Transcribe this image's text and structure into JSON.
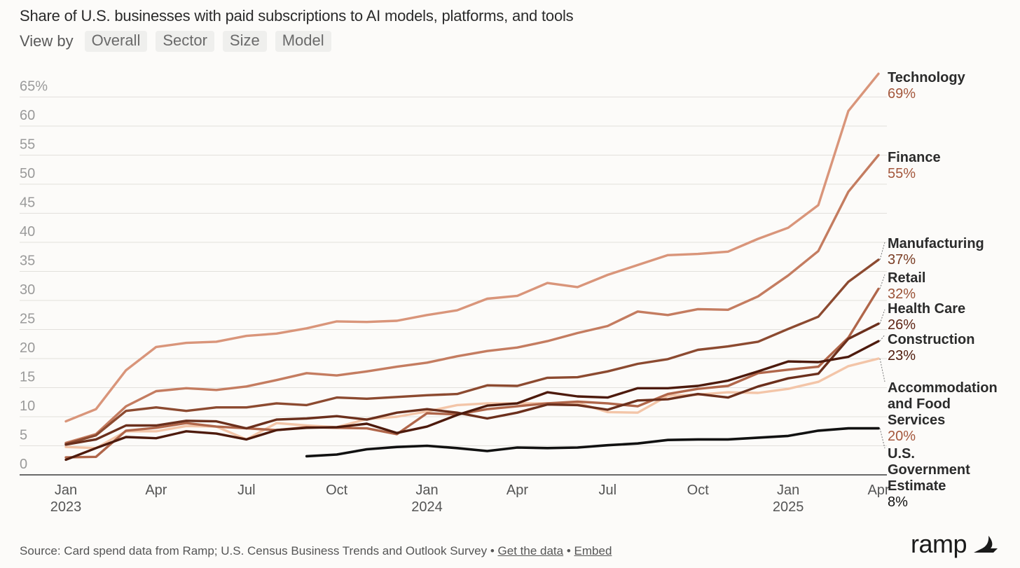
{
  "header": {
    "title": "Share of U.S. businesses with paid subscriptions to AI models, platforms, and tools",
    "view_by_label": "View by",
    "view_options": [
      "Overall",
      "Sector",
      "Size",
      "Model"
    ]
  },
  "footer": {
    "source_text": "Source: Card spend data from Ramp; U.S. Census Business Trends and Outlook Survey",
    "separator": "•",
    "get_data_link": "Get the data",
    "embed_link": "Embed"
  },
  "brand": {
    "name": "ramp",
    "logo_icon": "ramp-logo-icon"
  },
  "colors": {
    "background": "#fcfbf9",
    "grid": "#e2e0dc",
    "axis": "#3a3a3a",
    "tick_text": "#9a9a9a",
    "label_text": "#2b2b2b"
  },
  "chart_data": {
    "type": "line",
    "title": "Share of U.S. businesses with paid subscriptions to AI models, platforms, and tools",
    "xlabel": "",
    "ylabel": "",
    "ylim": [
      0,
      67
    ],
    "grid": true,
    "legend": "direct labels at right end of lines",
    "y_ticks": [
      0,
      5,
      10,
      15,
      20,
      25,
      30,
      35,
      40,
      45,
      50,
      55,
      60,
      65
    ],
    "y_tick_labels": [
      "0",
      "5",
      "10",
      "15",
      "20",
      "25",
      "30",
      "35",
      "40",
      "45",
      "50",
      "55",
      "60",
      "65%"
    ],
    "x_ticks": [
      {
        "month": "2023-01",
        "label": "Jan",
        "year": "2023"
      },
      {
        "month": "2023-04",
        "label": "Apr",
        "year": ""
      },
      {
        "month": "2023-07",
        "label": "Jul",
        "year": ""
      },
      {
        "month": "2023-10",
        "label": "Oct",
        "year": ""
      },
      {
        "month": "2024-01",
        "label": "Jan",
        "year": "2024"
      },
      {
        "month": "2024-04",
        "label": "Apr",
        "year": ""
      },
      {
        "month": "2024-07",
        "label": "Jul",
        "year": ""
      },
      {
        "month": "2024-10",
        "label": "Oct",
        "year": ""
      },
      {
        "month": "2025-01",
        "label": "Jan",
        "year": "2025"
      },
      {
        "month": "2025-04",
        "label": "Apr",
        "year": ""
      }
    ],
    "x": [
      "2023-01",
      "2023-02",
      "2023-03",
      "2023-04",
      "2023-05",
      "2023-06",
      "2023-07",
      "2023-08",
      "2023-09",
      "2023-10",
      "2023-11",
      "2023-12",
      "2024-01",
      "2024-02",
      "2024-03",
      "2024-04",
      "2024-05",
      "2024-06",
      "2024-07",
      "2024-08",
      "2024-09",
      "2024-10",
      "2024-11",
      "2024-12",
      "2025-01",
      "2025-02",
      "2025-03",
      "2025-04"
    ],
    "series": [
      {
        "name": "Technology",
        "end_label": "69%",
        "color": "#d9957a",
        "label_color": "#a4573c",
        "values": [
          9.2,
          11.3,
          18.0,
          22.0,
          22.7,
          22.9,
          23.9,
          24.3,
          25.2,
          26.4,
          26.3,
          26.5,
          27.5,
          28.3,
          30.3,
          30.8,
          33.0,
          32.3,
          34.4,
          36.1,
          37.8,
          38.0,
          38.4,
          40.6,
          42.5,
          46.4,
          62.6,
          69
        ]
      },
      {
        "name": "Finance",
        "end_label": "55%",
        "color": "#c47c60",
        "label_color": "#a4573c",
        "values": [
          5.5,
          7.0,
          11.8,
          14.4,
          14.9,
          14.6,
          15.2,
          16.3,
          17.5,
          17.1,
          17.8,
          18.6,
          19.3,
          20.4,
          21.3,
          21.9,
          23.0,
          24.4,
          25.6,
          28.1,
          27.5,
          28.5,
          28.4,
          30.7,
          34.3,
          38.5,
          48.7,
          55
        ]
      },
      {
        "name": "Manufacturing",
        "end_label": "37%",
        "color": "#8c4a30",
        "label_color": "#7a3d24",
        "values": [
          5.3,
          6.8,
          11.0,
          11.6,
          11.0,
          11.6,
          11.6,
          12.3,
          12.0,
          13.3,
          13.1,
          13.4,
          13.7,
          13.9,
          15.4,
          15.3,
          16.7,
          16.8,
          17.8,
          19.1,
          19.9,
          21.5,
          22.1,
          22.9,
          25.1,
          27.2,
          33.2,
          37
        ]
      },
      {
        "name": "Retail",
        "end_label": "32%",
        "color": "#b0664a",
        "label_color": "#9a5236",
        "values": [
          3.0,
          3.1,
          7.6,
          8.1,
          8.9,
          8.3,
          8.0,
          7.7,
          8.2,
          8.1,
          8.0,
          7.0,
          10.6,
          10.4,
          11.3,
          11.8,
          12.3,
          12.6,
          12.3,
          11.8,
          13.9,
          14.8,
          15.3,
          17.5,
          18.1,
          18.6,
          23.6,
          32
        ]
      },
      {
        "name": "Health Care",
        "end_label": "26%",
        "color": "#6b2f1c",
        "label_color": "#5e2414",
        "values": [
          5.2,
          6.1,
          8.5,
          8.5,
          9.3,
          9.2,
          8.0,
          9.5,
          9.7,
          10.1,
          9.5,
          10.7,
          11.3,
          10.7,
          9.7,
          10.7,
          12.1,
          12.0,
          11.2,
          12.8,
          13.0,
          13.9,
          13.3,
          15.2,
          16.6,
          17.4,
          23.4,
          26
        ]
      },
      {
        "name": "Construction",
        "end_label": "23%",
        "color": "#4d1a0c",
        "label_color": "#4d1a0c",
        "values": [
          2.6,
          4.6,
          6.5,
          6.3,
          7.5,
          7.1,
          6.1,
          7.7,
          8.1,
          8.2,
          8.8,
          7.2,
          8.3,
          10.3,
          11.9,
          12.3,
          14.2,
          13.5,
          13.3,
          14.9,
          14.9,
          15.3,
          16.2,
          17.8,
          19.5,
          19.4,
          20.3,
          23
        ]
      },
      {
        "name": "Accommodation and Food Services",
        "end_label": "20%",
        "color": "#f3c5a8",
        "label_color": "#a4573c",
        "values": [
          4.8,
          4.6,
          7.5,
          7.5,
          8.4,
          8.3,
          6.1,
          8.9,
          8.5,
          8.2,
          9.6,
          10.0,
          10.9,
          12.0,
          12.3,
          12.3,
          12.3,
          12.4,
          10.8,
          10.7,
          13.6,
          13.8,
          14.2,
          14.1,
          14.8,
          16.0,
          18.7,
          20
        ]
      },
      {
        "name": "U.S. Government Estimate",
        "end_label": "8%",
        "color": "#111111",
        "label_color": "#111111",
        "values": [
          null,
          null,
          null,
          null,
          null,
          null,
          null,
          null,
          3.2,
          3.5,
          4.4,
          4.8,
          5.0,
          4.6,
          4.1,
          4.7,
          4.6,
          4.7,
          5.1,
          5.4,
          6.0,
          6.1,
          6.1,
          6.4,
          6.7,
          7.6,
          8.0,
          8.0
        ]
      }
    ]
  }
}
